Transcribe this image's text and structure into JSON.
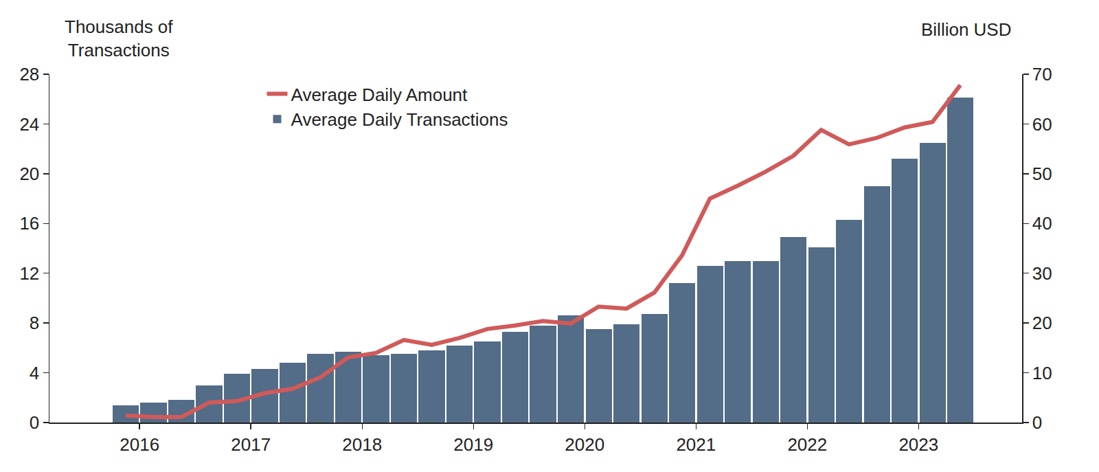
{
  "chart_data": {
    "type": "bar",
    "ylabel": "Thousands of\nTransactions",
    "y2label": "Billion USD",
    "x": [
      2016.375,
      2016.625,
      2016.875,
      2017.125,
      2017.375,
      2017.625,
      2017.875,
      2018.125,
      2018.375,
      2018.625,
      2018.875,
      2019.125,
      2019.375,
      2019.625,
      2019.875,
      2020.125,
      2020.375,
      2020.625,
      2020.875,
      2021.125,
      2021.375,
      2021.625,
      2021.875,
      2022.125,
      2022.375,
      2022.625,
      2022.875,
      2023.125,
      2023.375,
      2023.625,
      2023.875
    ],
    "xlim": [
      2015.69,
      2024.43
    ],
    "xticks": [
      {
        "value": 2016.5,
        "label": "2016"
      },
      {
        "value": 2017.5,
        "label": "2017"
      },
      {
        "value": 2018.5,
        "label": "2018"
      },
      {
        "value": 2019.5,
        "label": "2019"
      },
      {
        "value": 2020.5,
        "label": "2020"
      },
      {
        "value": 2021.5,
        "label": "2021"
      },
      {
        "value": 2022.5,
        "label": "2022"
      },
      {
        "value": 2023.5,
        "label": "2023"
      }
    ],
    "ylim": [
      0,
      28
    ],
    "yticks": [
      0,
      4,
      8,
      12,
      16,
      20,
      24,
      28
    ],
    "y2lim": [
      0,
      70
    ],
    "y2ticks": [
      0,
      10,
      20,
      30,
      40,
      50,
      60,
      70
    ],
    "grid": false,
    "legend": "upper left",
    "series": [
      {
        "name": "Average Daily Transactions",
        "type": "bar",
        "axis": "y",
        "color": "#536c87",
        "values": [
          1.4,
          1.6,
          1.8,
          3.0,
          3.9,
          4.3,
          4.8,
          5.5,
          5.7,
          5.4,
          5.5,
          5.8,
          6.2,
          6.5,
          7.3,
          7.8,
          8.6,
          7.5,
          7.9,
          8.7,
          11.2,
          12.6,
          13.0,
          13.0,
          14.9,
          14.1,
          16.3,
          19.0,
          21.2,
          22.5,
          26.1
        ]
      },
      {
        "name": "Average Daily Amount",
        "type": "line",
        "axis": "y2",
        "color": "#d05a5a",
        "values": [
          1.4,
          1.1,
          1.1,
          4.0,
          4.3,
          5.9,
          6.8,
          9.1,
          13.1,
          14.0,
          16.6,
          15.6,
          17.0,
          18.8,
          19.5,
          20.4,
          19.9,
          23.3,
          22.9,
          26.1,
          33.6,
          45.0,
          47.6,
          50.4,
          53.6,
          58.8,
          55.9,
          57.2,
          59.3,
          60.4,
          67.8
        ]
      }
    ]
  }
}
